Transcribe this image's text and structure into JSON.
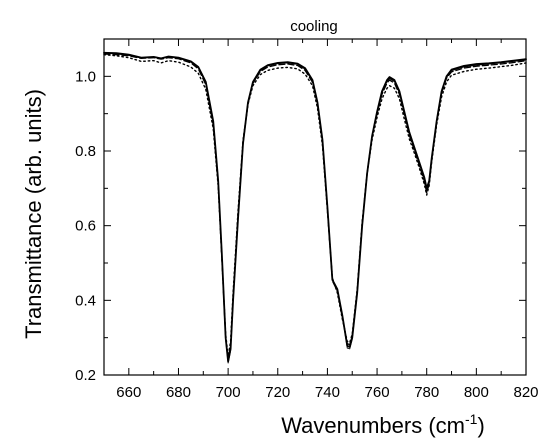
{
  "chart_data": {
    "type": "line",
    "title": "cooling",
    "xlabel": "Wavenumbers (cm",
    "xlabel_sup": "-1",
    "xlabel_end": ")",
    "ylabel": "Transmittance (arb. units)",
    "xlim": [
      650,
      820
    ],
    "ylim": [
      0.2,
      1.1
    ],
    "x_ticks": [
      660,
      680,
      700,
      720,
      740,
      760,
      780,
      800,
      820
    ],
    "y_ticks": [
      0.2,
      0.4,
      0.6,
      0.8,
      1.0
    ],
    "x_tick_labels": [
      "660",
      "680",
      "700",
      "720",
      "740",
      "760",
      "780",
      "800",
      "820"
    ],
    "y_tick_labels": [
      "0.2",
      "0.4",
      "0.6",
      "0.8",
      "1.0"
    ],
    "grid": false,
    "series": [
      {
        "style": "solid",
        "points": [
          [
            650,
            1.063
          ],
          [
            655,
            1.062
          ],
          [
            660,
            1.058
          ],
          [
            665,
            1.05
          ],
          [
            670,
            1.052
          ],
          [
            673,
            1.048
          ],
          [
            676,
            1.053
          ],
          [
            680,
            1.05
          ],
          [
            685,
            1.04
          ],
          [
            688,
            1.025
          ],
          [
            691,
            0.985
          ],
          [
            694,
            0.88
          ],
          [
            696,
            0.72
          ],
          [
            697.5,
            0.52
          ],
          [
            699,
            0.3
          ],
          [
            700,
            0.236
          ],
          [
            701,
            0.27
          ],
          [
            702,
            0.4
          ],
          [
            704,
            0.62
          ],
          [
            706,
            0.82
          ],
          [
            708,
            0.93
          ],
          [
            710,
            0.985
          ],
          [
            713,
            1.018
          ],
          [
            716,
            1.03
          ],
          [
            720,
            1.036
          ],
          [
            724,
            1.038
          ],
          [
            728,
            1.034
          ],
          [
            731,
            1.022
          ],
          [
            734,
            0.99
          ],
          [
            736,
            0.93
          ],
          [
            738,
            0.83
          ],
          [
            740,
            0.65
          ],
          [
            742,
            0.455
          ],
          [
            744,
            0.43
          ],
          [
            746,
            0.36
          ],
          [
            748,
            0.278
          ],
          [
            749,
            0.275
          ],
          [
            750,
            0.3
          ],
          [
            752,
            0.42
          ],
          [
            754,
            0.6
          ],
          [
            756,
            0.74
          ],
          [
            758,
            0.84
          ],
          [
            760,
            0.905
          ],
          [
            762,
            0.96
          ],
          [
            764,
            0.99
          ],
          [
            765,
            0.998
          ],
          [
            767,
            0.99
          ],
          [
            769,
            0.96
          ],
          [
            771,
            0.905
          ],
          [
            773,
            0.85
          ],
          [
            775,
            0.81
          ],
          [
            777,
            0.77
          ],
          [
            779,
            0.73
          ],
          [
            780,
            0.7
          ],
          [
            781,
            0.72
          ],
          [
            782,
            0.78
          ],
          [
            784,
            0.88
          ],
          [
            786,
            0.96
          ],
          [
            788,
            1.0
          ],
          [
            790,
            1.018
          ],
          [
            795,
            1.028
          ],
          [
            800,
            1.033
          ],
          [
            805,
            1.035
          ],
          [
            810,
            1.038
          ],
          [
            815,
            1.042
          ],
          [
            820,
            1.046
          ]
        ]
      },
      {
        "style": "dashed",
        "points": [
          [
            650,
            1.06
          ],
          [
            655,
            1.058
          ],
          [
            660,
            1.055
          ],
          [
            665,
            1.048
          ],
          [
            670,
            1.05
          ],
          [
            673,
            1.046
          ],
          [
            676,
            1.05
          ],
          [
            680,
            1.047
          ],
          [
            685,
            1.036
          ],
          [
            688,
            1.02
          ],
          [
            691,
            0.978
          ],
          [
            694,
            0.87
          ],
          [
            696,
            0.71
          ],
          [
            697.5,
            0.51
          ],
          [
            699,
            0.3
          ],
          [
            700,
            0.243
          ],
          [
            701,
            0.28
          ],
          [
            702,
            0.41
          ],
          [
            704,
            0.63
          ],
          [
            706,
            0.825
          ],
          [
            708,
            0.928
          ],
          [
            710,
            0.982
          ],
          [
            713,
            1.013
          ],
          [
            716,
            1.025
          ],
          [
            720,
            1.031
          ],
          [
            724,
            1.033
          ],
          [
            728,
            1.029
          ],
          [
            731,
            1.016
          ],
          [
            734,
            0.984
          ],
          [
            736,
            0.925
          ],
          [
            738,
            0.825
          ],
          [
            740,
            0.645
          ],
          [
            742,
            0.452
          ],
          [
            744,
            0.425
          ],
          [
            746,
            0.355
          ],
          [
            748,
            0.284
          ],
          [
            749,
            0.281
          ],
          [
            750,
            0.305
          ],
          [
            752,
            0.425
          ],
          [
            754,
            0.605
          ],
          [
            756,
            0.742
          ],
          [
            758,
            0.838
          ],
          [
            760,
            0.9
          ],
          [
            762,
            0.952
          ],
          [
            764,
            0.982
          ],
          [
            765,
            0.99
          ],
          [
            767,
            0.982
          ],
          [
            769,
            0.952
          ],
          [
            771,
            0.898
          ],
          [
            773,
            0.842
          ],
          [
            775,
            0.802
          ],
          [
            777,
            0.762
          ],
          [
            779,
            0.72
          ],
          [
            780,
            0.688
          ],
          [
            781,
            0.712
          ],
          [
            782,
            0.774
          ],
          [
            784,
            0.876
          ],
          [
            786,
            0.955
          ],
          [
            788,
            0.995
          ],
          [
            790,
            1.012
          ],
          [
            795,
            1.022
          ],
          [
            800,
            1.027
          ],
          [
            805,
            1.03
          ],
          [
            810,
            1.033
          ],
          [
            815,
            1.037
          ],
          [
            820,
            1.042
          ]
        ]
      },
      {
        "style": "dotted",
        "points": [
          [
            650,
            1.058
          ],
          [
            655,
            1.055
          ],
          [
            660,
            1.05
          ],
          [
            665,
            1.04
          ],
          [
            670,
            1.042
          ],
          [
            673,
            1.036
          ],
          [
            676,
            1.042
          ],
          [
            680,
            1.038
          ],
          [
            685,
            1.025
          ],
          [
            688,
            1.008
          ],
          [
            691,
            0.965
          ],
          [
            694,
            0.86
          ],
          [
            696,
            0.705
          ],
          [
            697.5,
            0.51
          ],
          [
            699,
            0.31
          ],
          [
            700,
            0.25
          ],
          [
            701,
            0.29
          ],
          [
            702,
            0.42
          ],
          [
            704,
            0.64
          ],
          [
            706,
            0.828
          ],
          [
            708,
            0.925
          ],
          [
            710,
            0.975
          ],
          [
            713,
            1.005
          ],
          [
            716,
            1.016
          ],
          [
            720,
            1.022
          ],
          [
            724,
            1.024
          ],
          [
            728,
            1.02
          ],
          [
            731,
            1.006
          ],
          [
            734,
            0.975
          ],
          [
            736,
            0.915
          ],
          [
            738,
            0.815
          ],
          [
            740,
            0.64
          ],
          [
            742,
            0.46
          ],
          [
            744,
            0.42
          ],
          [
            746,
            0.35
          ],
          [
            748,
            0.29
          ],
          [
            749,
            0.287
          ],
          [
            750,
            0.31
          ],
          [
            752,
            0.43
          ],
          [
            754,
            0.61
          ],
          [
            756,
            0.74
          ],
          [
            758,
            0.83
          ],
          [
            760,
            0.89
          ],
          [
            762,
            0.94
          ],
          [
            764,
            0.968
          ],
          [
            765,
            0.975
          ],
          [
            767,
            0.968
          ],
          [
            769,
            0.94
          ],
          [
            771,
            0.885
          ],
          [
            773,
            0.832
          ],
          [
            775,
            0.795
          ],
          [
            777,
            0.755
          ],
          [
            779,
            0.712
          ],
          [
            780,
            0.682
          ],
          [
            781,
            0.708
          ],
          [
            782,
            0.77
          ],
          [
            784,
            0.87
          ],
          [
            786,
            0.945
          ],
          [
            788,
            0.985
          ],
          [
            790,
            1.003
          ],
          [
            795,
            1.013
          ],
          [
            800,
            1.019
          ],
          [
            805,
            1.022
          ],
          [
            810,
            1.026
          ],
          [
            815,
            1.03
          ],
          [
            820,
            1.036
          ]
        ]
      },
      {
        "style": "solid-thin",
        "points": [
          [
            650,
            1.062
          ],
          [
            655,
            1.06
          ],
          [
            660,
            1.056
          ],
          [
            665,
            1.049
          ],
          [
            670,
            1.051
          ],
          [
            673,
            1.047
          ],
          [
            676,
            1.052
          ],
          [
            680,
            1.049
          ],
          [
            685,
            1.038
          ],
          [
            688,
            1.023
          ],
          [
            691,
            0.982
          ],
          [
            694,
            0.875
          ],
          [
            696,
            0.715
          ],
          [
            697.5,
            0.515
          ],
          [
            699,
            0.295
          ],
          [
            700,
            0.232
          ],
          [
            701,
            0.265
          ],
          [
            702,
            0.395
          ],
          [
            704,
            0.615
          ],
          [
            706,
            0.815
          ],
          [
            708,
            0.925
          ],
          [
            710,
            0.98
          ],
          [
            713,
            1.015
          ],
          [
            716,
            1.028
          ],
          [
            720,
            1.034
          ],
          [
            724,
            1.036
          ],
          [
            728,
            1.032
          ],
          [
            731,
            1.019
          ],
          [
            734,
            0.987
          ],
          [
            736,
            0.928
          ],
          [
            738,
            0.828
          ],
          [
            740,
            0.648
          ],
          [
            742,
            0.455
          ],
          [
            744,
            0.428
          ],
          [
            746,
            0.358
          ],
          [
            748,
            0.272
          ],
          [
            749,
            0.27
          ],
          [
            750,
            0.296
          ],
          [
            752,
            0.418
          ],
          [
            754,
            0.598
          ],
          [
            756,
            0.738
          ],
          [
            758,
            0.838
          ],
          [
            760,
            0.902
          ],
          [
            762,
            0.956
          ],
          [
            764,
            0.986
          ],
          [
            765,
            0.994
          ],
          [
            767,
            0.986
          ],
          [
            769,
            0.956
          ],
          [
            771,
            0.902
          ],
          [
            773,
            0.846
          ],
          [
            775,
            0.806
          ],
          [
            777,
            0.766
          ],
          [
            779,
            0.724
          ],
          [
            780,
            0.694
          ],
          [
            781,
            0.716
          ],
          [
            782,
            0.777
          ],
          [
            784,
            0.878
          ],
          [
            786,
            0.958
          ],
          [
            788,
            0.997
          ],
          [
            790,
            1.015
          ],
          [
            795,
            1.025
          ],
          [
            800,
            1.03
          ],
          [
            805,
            1.033
          ],
          [
            810,
            1.036
          ],
          [
            815,
            1.04
          ],
          [
            820,
            1.044
          ]
        ]
      }
    ],
    "colors": {
      "line": "#000000",
      "axis": "#000000",
      "background": "#ffffff"
    }
  }
}
